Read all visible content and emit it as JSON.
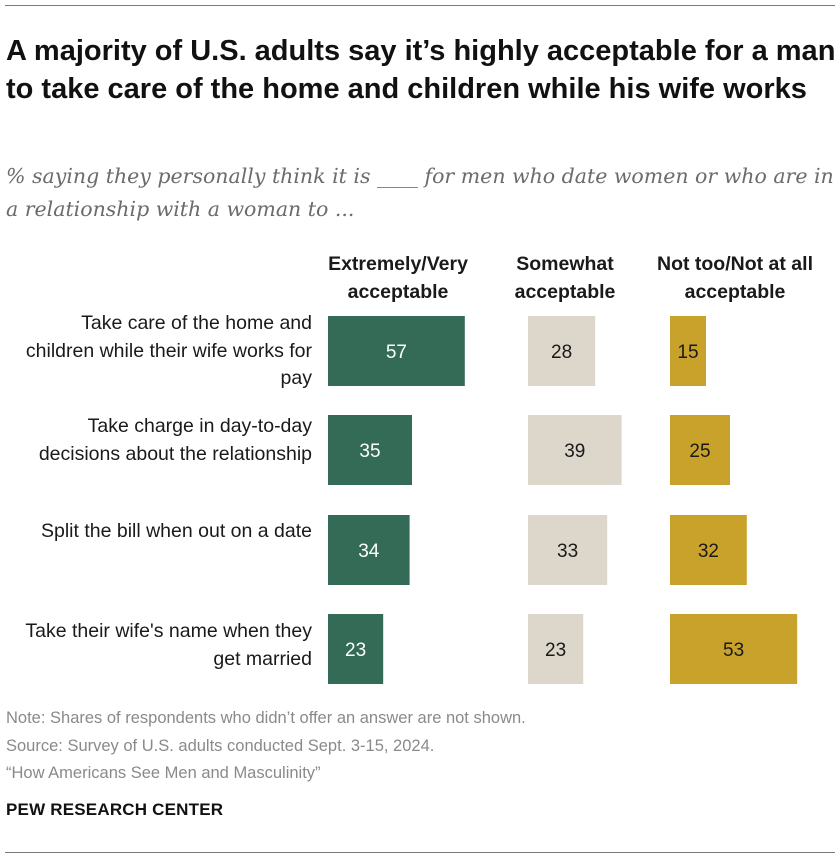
{
  "title": "A majority of U.S. adults say it’s highly acceptable for a man to take care of the home and children while his wife works",
  "subtitle": "% saying they personally think it is ____ for men who date women or who are in a relationship with a woman to ...",
  "chart_data": {
    "type": "bar",
    "orientation": "horizontal",
    "categories": [
      "Take care of the home and children while their wife works for pay",
      "Take charge in day-to-day decisions about the relationship",
      "Split the bill when out on a date",
      "Take their wife's name when they get married"
    ],
    "series": [
      {
        "name": "Extremely/Very acceptable",
        "color": "#336b57",
        "label_color": "#ffffff",
        "values": [
          57,
          35,
          34,
          23
        ]
      },
      {
        "name": "Somewhat acceptable",
        "color": "#dcd7ca",
        "label_color": "#1a1a1a",
        "values": [
          28,
          39,
          33,
          23
        ]
      },
      {
        "name": "Not too/Not at all acceptable",
        "color": "#c9a22c",
        "label_color": "#1a1a1a",
        "values": [
          15,
          25,
          32,
          53
        ]
      }
    ],
    "xlim": [
      0,
      100
    ]
  },
  "footer": {
    "note": "Note: Shares of respondents who didn’t offer an answer are not shown.",
    "source": "Source: Survey of U.S. adults conducted Sept. 3-15, 2024.",
    "report": "“How Americans See Men and Masculinity”",
    "brand": "PEW RESEARCH CENTER"
  }
}
